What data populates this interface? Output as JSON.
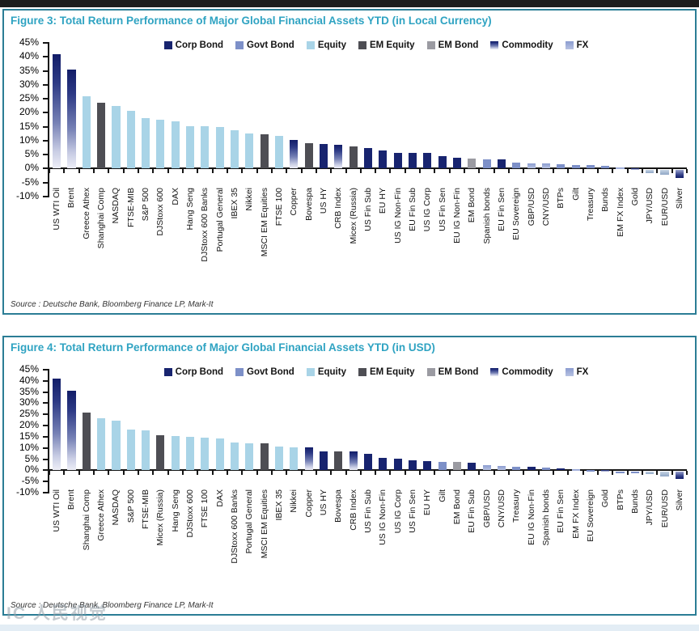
{
  "page": {
    "watermark": "IC 人民视觉"
  },
  "legend": {
    "items": [
      "Corp Bond",
      "Govt Bond",
      "Equity",
      "EM Equity",
      "EM Bond",
      "Commodity",
      "FX"
    ],
    "colors": {
      "Corp Bond": "#18246f",
      "Govt Bond": "#7d90c8",
      "Equity": "#a9d4e7",
      "EM Equity": "#4e4e54",
      "EM Bond": "#9b9ba2",
      "Commodity": "#121d68",
      "FX": "#8b9cd0"
    },
    "accent_teal": "#2b7d95",
    "title_color": "#2fa3c2"
  },
  "chart_data": [
    {
      "type": "bar",
      "title": "Figure 3: Total Return Performance of Major Global Financial Assets YTD (in Local Currency)",
      "source": "Source : Deutsche Bank, Bloomberg Finance LP, Mark-It",
      "ylim": [
        -10,
        45
      ],
      "ytick_step": 5,
      "ytick_suffix": "%",
      "grid": false,
      "legend_position": "top",
      "items": [
        {
          "label": "US WTI Oil",
          "category": "Commodity",
          "value": 41.0
        },
        {
          "label": "Brent",
          "category": "Commodity",
          "value": 35.5
        },
        {
          "label": "Greece Athex",
          "category": "Equity",
          "value": 26.0
        },
        {
          "label": "Shanghai Comp",
          "category": "EM Equity",
          "value": 23.5
        },
        {
          "label": "NASDAQ",
          "category": "Equity",
          "value": 22.4
        },
        {
          "label": "FTSE-MIB",
          "category": "Equity",
          "value": 20.6
        },
        {
          "label": "S&P 500",
          "category": "Equity",
          "value": 18.2
        },
        {
          "label": "DJStoxx 600",
          "category": "Equity",
          "value": 17.6
        },
        {
          "label": "DAX",
          "category": "Equity",
          "value": 17.0
        },
        {
          "label": "Hang Seng",
          "category": "Equity",
          "value": 15.2
        },
        {
          "label": "DJStoxx 600 Banks",
          "category": "Equity",
          "value": 15.1
        },
        {
          "label": "Portugal General",
          "category": "Equity",
          "value": 15.0
        },
        {
          "label": "IBEX 35",
          "category": "Equity",
          "value": 13.7
        },
        {
          "label": "Nikkei",
          "category": "Equity",
          "value": 12.6
        },
        {
          "label": "MSCI EM Equities",
          "category": "EM Equity",
          "value": 12.4
        },
        {
          "label": "FTSE 100",
          "category": "Equity",
          "value": 11.8
        },
        {
          "label": "Copper",
          "category": "Commodity",
          "value": 10.3
        },
        {
          "label": "Bovespa",
          "category": "EM Equity",
          "value": 9.2
        },
        {
          "label": "US HY",
          "category": "Corp Bond",
          "value": 8.7
        },
        {
          "label": "CRB Index",
          "category": "Commodity",
          "value": 8.5
        },
        {
          "label": "Micex (Russia)",
          "category": "EM Equity",
          "value": 8.0
        },
        {
          "label": "US Fin Sub",
          "category": "Corp Bond",
          "value": 7.4
        },
        {
          "label": "EU HY",
          "category": "Corp Bond",
          "value": 6.4
        },
        {
          "label": "US IG Non-Fin",
          "category": "Corp Bond",
          "value": 5.7
        },
        {
          "label": "EU Fin Sub",
          "category": "Corp Bond",
          "value": 5.6
        },
        {
          "label": "US IG Corp",
          "category": "Corp Bond",
          "value": 5.5
        },
        {
          "label": "US Fin Sen",
          "category": "Corp Bond",
          "value": 4.6
        },
        {
          "label": "EU IG Non-Fin",
          "category": "Corp Bond",
          "value": 3.9
        },
        {
          "label": "EM Bond",
          "category": "EM Bond",
          "value": 3.6
        },
        {
          "label": "Spanish bonds",
          "category": "Govt Bond",
          "value": 3.3
        },
        {
          "label": "EU Fin Sen",
          "category": "Corp Bond",
          "value": 3.2
        },
        {
          "label": "EU Sovereign",
          "category": "Govt Bond",
          "value": 2.1
        },
        {
          "label": "GBP/USD",
          "category": "FX",
          "value": 2.0
        },
        {
          "label": "CNY/USD",
          "category": "FX",
          "value": 1.9
        },
        {
          "label": "BTPs",
          "category": "Govt Bond",
          "value": 1.5
        },
        {
          "label": "Gilt",
          "category": "Govt Bond",
          "value": 1.4
        },
        {
          "label": "Treasury",
          "category": "Govt Bond",
          "value": 1.3
        },
        {
          "label": "Bunds",
          "category": "Govt Bond",
          "value": 1.1
        },
        {
          "label": "EM FX Index",
          "category": "FX",
          "value": 0.4
        },
        {
          "label": "Gold",
          "category": "Commodity",
          "value": 0.2
        },
        {
          "label": "JPY/USD",
          "category": "FX",
          "value": -1.6
        },
        {
          "label": "EUR/USD",
          "category": "FX",
          "value": -2.1
        },
        {
          "label": "Silver",
          "category": "Commodity",
          "value": -3.4
        }
      ]
    },
    {
      "type": "bar",
      "title": "Figure 4: Total Return Performance of Major Global Financial Assets YTD (in USD)",
      "source": "Source : Deutsche Bank, Bloomberg Finance LP, Mark-It",
      "ylim": [
        -10,
        45
      ],
      "ytick_step": 5,
      "ytick_suffix": "%",
      "grid": false,
      "legend_position": "top",
      "items": [
        {
          "label": "US WTI Oil",
          "category": "Commodity",
          "value": 41.0
        },
        {
          "label": "Brent",
          "category": "Commodity",
          "value": 35.5
        },
        {
          "label": "Shanghai Comp",
          "category": "EM Equity",
          "value": 26.0
        },
        {
          "label": "Greece Athex",
          "category": "Equity",
          "value": 23.3
        },
        {
          "label": "NASDAQ",
          "category": "Equity",
          "value": 22.3
        },
        {
          "label": "S&P 500",
          "category": "Equity",
          "value": 18.1
        },
        {
          "label": "FTSE-MIB",
          "category": "Equity",
          "value": 17.9
        },
        {
          "label": "Micex (Russia)",
          "category": "EM Equity",
          "value": 15.8
        },
        {
          "label": "Hang Seng",
          "category": "Equity",
          "value": 15.2
        },
        {
          "label": "DJStoxx 600",
          "category": "Equity",
          "value": 15.1
        },
        {
          "label": "FTSE 100",
          "category": "Equity",
          "value": 14.5
        },
        {
          "label": "DAX",
          "category": "Equity",
          "value": 14.4
        },
        {
          "label": "DJStoxx 600 Banks",
          "category": "Equity",
          "value": 12.3
        },
        {
          "label": "Portugal General",
          "category": "Equity",
          "value": 12.1
        },
        {
          "label": "MSCI EM Equities",
          "category": "EM Equity",
          "value": 12.0
        },
        {
          "label": "IBEX 35",
          "category": "Equity",
          "value": 10.8
        },
        {
          "label": "Nikkei",
          "category": "Equity",
          "value": 10.4
        },
        {
          "label": "Copper",
          "category": "Commodity",
          "value": 10.2
        },
        {
          "label": "US HY",
          "category": "Corp Bond",
          "value": 8.5
        },
        {
          "label": "Bovespa",
          "category": "EM Equity",
          "value": 8.4
        },
        {
          "label": "CRB Index",
          "category": "Commodity",
          "value": 8.3
        },
        {
          "label": "US Fin Sub",
          "category": "Corp Bond",
          "value": 7.2
        },
        {
          "label": "US IG Non-Fin",
          "category": "Corp Bond",
          "value": 5.6
        },
        {
          "label": "US IG Corp",
          "category": "Corp Bond",
          "value": 5.3
        },
        {
          "label": "US Fin Sen",
          "category": "Corp Bond",
          "value": 4.5
        },
        {
          "label": "EU HY",
          "category": "Corp Bond",
          "value": 4.1
        },
        {
          "label": "Gilt",
          "category": "Govt Bond",
          "value": 3.9
        },
        {
          "label": "EM Bond",
          "category": "EM Bond",
          "value": 3.7
        },
        {
          "label": "EU Fin Sub",
          "category": "Corp Bond",
          "value": 3.4
        },
        {
          "label": "GBP/USD",
          "category": "FX",
          "value": 2.2
        },
        {
          "label": "CNY/USD",
          "category": "FX",
          "value": 2.0
        },
        {
          "label": "Treasury",
          "category": "Govt Bond",
          "value": 1.7
        },
        {
          "label": "EU IG Non-Fin",
          "category": "Corp Bond",
          "value": 1.5
        },
        {
          "label": "Spanish bonds",
          "category": "Govt Bond",
          "value": 1.1
        },
        {
          "label": "EU Fin Sen",
          "category": "Corp Bond",
          "value": 1.0
        },
        {
          "label": "EM FX Index",
          "category": "FX",
          "value": 0.4
        },
        {
          "label": "EU Sovereign",
          "category": "Govt Bond",
          "value": 0.3
        },
        {
          "label": "Gold",
          "category": "Commodity",
          "value": 0.2
        },
        {
          "label": "BTPs",
          "category": "Govt Bond",
          "value": -0.3
        },
        {
          "label": "Bunds",
          "category": "Govt Bond",
          "value": -0.5
        },
        {
          "label": "JPY/USD",
          "category": "FX",
          "value": -1.8
        },
        {
          "label": "EUR/USD",
          "category": "FX",
          "value": -2.7
        },
        {
          "label": "Silver",
          "category": "Commodity",
          "value": -3.7
        }
      ]
    }
  ]
}
